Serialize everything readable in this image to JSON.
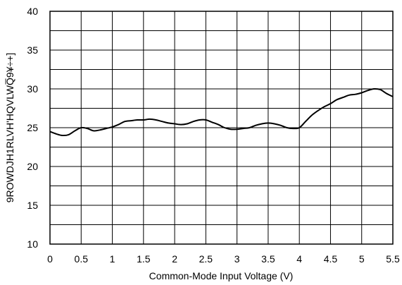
{
  "chart_data": {
    "type": "line",
    "title": "",
    "xlabel": "Common-Mode Input Voltage (V)",
    "ylabel": "9ROWDJH1RLVH'HQVLWQ̅9¥÷+]",
    "xlim": [
      0,
      5.5
    ],
    "ylim": [
      10,
      40
    ],
    "x_ticks": [
      "0",
      "0.5",
      "1",
      "1.5",
      "2",
      "2.5",
      "3",
      "3.5",
      "4",
      "4.5",
      "5",
      "5.5"
    ],
    "y_ticks": [
      "10",
      "15",
      "20",
      "25",
      "30",
      "35",
      "40"
    ],
    "grid": true,
    "series": [
      {
        "color": "#000000",
        "x": [
          0,
          0.1,
          0.2,
          0.3,
          0.4,
          0.5,
          0.6,
          0.7,
          0.8,
          0.9,
          1.0,
          1.1,
          1.2,
          1.3,
          1.4,
          1.5,
          1.6,
          1.7,
          1.8,
          1.9,
          2.0,
          2.1,
          2.2,
          2.3,
          2.4,
          2.5,
          2.6,
          2.7,
          2.8,
          2.9,
          3.0,
          3.1,
          3.2,
          3.3,
          3.4,
          3.5,
          3.6,
          3.7,
          3.8,
          3.9,
          4.0,
          4.1,
          4.2,
          4.3,
          4.4,
          4.5,
          4.6,
          4.7,
          4.8,
          4.9,
          5.0,
          5.1,
          5.2,
          5.3,
          5.4,
          5.5
        ],
        "y": [
          24.5,
          24.2,
          24.0,
          24.1,
          24.6,
          25.0,
          24.9,
          24.6,
          24.7,
          24.9,
          25.1,
          25.4,
          25.8,
          25.9,
          26.0,
          26.0,
          26.1,
          26.0,
          25.8,
          25.6,
          25.5,
          25.4,
          25.5,
          25.8,
          26.0,
          26.0,
          25.7,
          25.4,
          25.0,
          24.8,
          24.8,
          24.9,
          25.0,
          25.3,
          25.5,
          25.6,
          25.5,
          25.3,
          25.0,
          24.9,
          25.0,
          25.8,
          26.6,
          27.2,
          27.7,
          28.1,
          28.6,
          28.9,
          29.2,
          29.3,
          29.5,
          29.8,
          30.0,
          29.9,
          29.4,
          29.0
        ]
      }
    ]
  }
}
